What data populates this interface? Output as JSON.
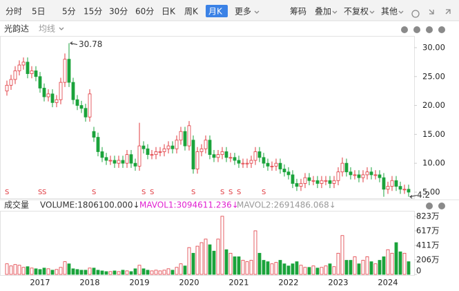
{
  "toolbar": {
    "left": [
      "分时",
      "5日",
      "5分",
      "15分",
      "30分",
      "60分",
      "日K",
      "周K",
      "月K",
      "更多"
    ],
    "active": 8,
    "right": [
      "筹码",
      "叠加",
      "不复权",
      "其他"
    ]
  },
  "header": {
    "name": "光韵达",
    "ma": "均线"
  },
  "chart_data": [
    {
      "type": "candlestick",
      "open": [
        22.5,
        23.5,
        24.5,
        26,
        27,
        27.5,
        25.5,
        26,
        25,
        23,
        21.5,
        22,
        20.5,
        21,
        24,
        28,
        24,
        21,
        20,
        19.5,
        18,
        15.5,
        14.5,
        12,
        11,
        10.5,
        10.5,
        10,
        10.5,
        10,
        11.5,
        10,
        9.5,
        13,
        12.5,
        11.5,
        11.5,
        12,
        12,
        12.5,
        13,
        12.5,
        14,
        15.5,
        13,
        14,
        9,
        12,
        12.5,
        14,
        11.5,
        11,
        11.5,
        12,
        11,
        11,
        10.5,
        10,
        10,
        10,
        10.5,
        12,
        11,
        10,
        9.5,
        9.5,
        10,
        9,
        8.5,
        8,
        6.5,
        6,
        6.5,
        7.5,
        7,
        7,
        6.5,
        7,
        7,
        6.5,
        7,
        8.5,
        10,
        8.5,
        8,
        8,
        7.5,
        8,
        8.5,
        8,
        8,
        7.5,
        5.5,
        6,
        7,
        6,
        5.5,
        5.5
      ],
      "high": [
        24.3,
        25.3,
        26.8,
        27.8,
        28.3,
        28.3,
        26.8,
        26.8,
        25.8,
        23.8,
        22.8,
        22.8,
        21.8,
        24.8,
        29,
        30.78,
        24.8,
        21.8,
        20.8,
        20.3,
        22.8,
        16.3,
        15.3,
        12.8,
        11.8,
        11.3,
        11.3,
        11.3,
        11.3,
        12.3,
        12.3,
        10.8,
        17,
        13.8,
        13.3,
        12.3,
        12.8,
        12.8,
        13.3,
        13.8,
        13.8,
        14.8,
        16.3,
        16.3,
        17.3,
        14.8,
        12.8,
        13.3,
        14.8,
        14.8,
        12.3,
        12.3,
        12.8,
        12.8,
        11.8,
        11.8,
        11.3,
        10.8,
        10.8,
        11.3,
        12.8,
        12.8,
        11.8,
        10.8,
        10.3,
        10.8,
        10.8,
        9.8,
        9.3,
        8.8,
        7.3,
        7.3,
        8.3,
        8.3,
        7.8,
        7.8,
        7.8,
        7.8,
        7.8,
        7.8,
        9.3,
        11,
        10.8,
        9.3,
        8.8,
        8.8,
        8.8,
        9.3,
        9.3,
        8.8,
        8.8,
        8.3,
        6.8,
        7.8,
        7.8,
        6.8,
        6.3,
        6.3
      ],
      "low": [
        21.7,
        22.7,
        23.7,
        25.2,
        26.2,
        24.7,
        24.7,
        24.2,
        22.2,
        20.7,
        20.7,
        19.7,
        19.7,
        20.2,
        23.2,
        23.2,
        20.2,
        19.2,
        18.7,
        17.2,
        17.2,
        13.7,
        11.2,
        10.2,
        9.7,
        9.7,
        9.2,
        9.2,
        9.2,
        9.2,
        9.2,
        8.7,
        8.7,
        11.7,
        10.7,
        10.7,
        10.7,
        11.2,
        11.2,
        11.7,
        11.7,
        11.7,
        13.2,
        12.2,
        12.2,
        8.2,
        8.2,
        11.2,
        11.7,
        10.7,
        10.2,
        10.2,
        10.7,
        10.2,
        10.2,
        9.7,
        9.2,
        9.2,
        9.2,
        9.2,
        9.7,
        10.2,
        9.2,
        8.7,
        8.7,
        8.7,
        8.2,
        7.7,
        7.2,
        5.7,
        5.2,
        5.2,
        5.7,
        6.2,
        6.2,
        5.7,
        5.7,
        6.2,
        5.7,
        5.7,
        6.2,
        7.7,
        7.7,
        7.2,
        7.2,
        6.7,
        6.7,
        7.2,
        7.2,
        7.2,
        6.7,
        4.21,
        4.7,
        5.2,
        5.2,
        4.7,
        4.7,
        4.2
      ],
      "close": [
        23.5,
        24.5,
        26,
        27,
        27.5,
        25.5,
        26,
        25,
        23,
        21.5,
        22,
        20.5,
        21,
        24,
        28,
        24,
        21,
        20,
        19.5,
        18,
        22,
        14.5,
        12,
        11,
        10.5,
        10.5,
        10,
        10.5,
        10,
        11.5,
        10,
        9.5,
        13,
        12.5,
        11.5,
        11.5,
        12,
        12,
        12.5,
        13,
        12.5,
        14,
        15.5,
        13,
        16.5,
        9,
        12,
        12.5,
        14,
        11.5,
        11,
        11.5,
        12,
        11,
        11,
        10.5,
        10,
        10,
        10,
        10.5,
        12,
        11,
        10,
        9.5,
        9.5,
        10,
        9,
        8.5,
        8,
        6.5,
        6,
        6.5,
        7.5,
        7,
        7,
        6.5,
        7,
        7,
        6.5,
        7,
        8.5,
        10,
        8.5,
        8,
        8,
        7.5,
        8,
        8.5,
        8,
        8,
        7.5,
        5.5,
        6,
        7,
        6,
        5.5,
        5.5,
        5
      ],
      "up_color": "#e0383e",
      "down_color": "#1aa33b",
      "ylim": [
        4.04,
        32.03
      ],
      "yticks": [
        {
          "value": 5,
          "label": "5.00"
        },
        {
          "value": 10,
          "label": "10.00"
        },
        {
          "value": 15,
          "label": "15.00"
        },
        {
          "value": 20,
          "label": "20.00"
        },
        {
          "value": 25,
          "label": "25.00"
        },
        {
          "value": 30,
          "label": "30.00"
        }
      ],
      "signal_label": "S",
      "signal_indices": [
        0,
        8,
        9,
        21,
        33,
        35,
        45,
        52,
        54,
        56,
        62
      ]
    },
    {
      "type": "bar",
      "title": "成交量",
      "legend": [
        {
          "text": "VOLUME:1806100.000↓",
          "color": "#333333"
        },
        {
          "text": "MAVOL1:3094611.236↓",
          "color": "#e020d0"
        },
        {
          "text": "MAVOL2:2691486.068↓",
          "color": "#999999"
        }
      ],
      "categories": [
        null,
        null,
        null,
        null,
        null,
        null,
        null,
        null,
        "2017",
        null,
        null,
        null,
        null,
        null,
        null,
        null,
        null,
        null,
        null,
        null,
        "2018",
        null,
        null,
        null,
        null,
        null,
        null,
        null,
        null,
        null,
        null,
        null,
        "2019",
        null,
        null,
        null,
        null,
        null,
        null,
        null,
        null,
        null,
        null,
        null,
        "2020",
        null,
        null,
        null,
        null,
        null,
        null,
        null,
        null,
        null,
        null,
        null,
        "2021",
        null,
        null,
        null,
        null,
        null,
        null,
        null,
        null,
        null,
        null,
        null,
        "2022",
        null,
        null,
        null,
        null,
        null,
        null,
        null,
        null,
        null,
        null,
        null,
        "2023",
        null,
        null,
        null,
        null,
        null,
        null,
        null,
        null,
        null,
        null,
        null,
        "2024",
        null,
        null,
        null,
        null,
        null
      ],
      "values": [
        150,
        120,
        140,
        130,
        100,
        110,
        90,
        80,
        70,
        90,
        80,
        60,
        70,
        100,
        180,
        150,
        80,
        70,
        60,
        60,
        90,
        90,
        60,
        50,
        40,
        40,
        50,
        40,
        60,
        50,
        40,
        80,
        130,
        80,
        60,
        50,
        60,
        50,
        60,
        80,
        60,
        100,
        150,
        120,
        380,
        300,
        400,
        450,
        500,
        420,
        330,
        500,
        823,
        350,
        300,
        250,
        250,
        200,
        180,
        200,
        617,
        300,
        200,
        180,
        150,
        170,
        200,
        150,
        120,
        150,
        180,
        130,
        100,
        100,
        120,
        90,
        100,
        120,
        150,
        110,
        300,
        550,
        200,
        200,
        250,
        150,
        200,
        250,
        180,
        150,
        200,
        250,
        350,
        300,
        450,
        320,
        300,
        180.61
      ],
      "ylim": [
        0,
        900
      ],
      "yticks": [
        {
          "value": 0,
          "label": "0"
        },
        {
          "value": 206,
          "label": "206万"
        },
        {
          "value": 411,
          "label": "411万"
        },
        {
          "value": 617,
          "label": "617万"
        },
        {
          "value": 823,
          "label": "823万"
        }
      ]
    }
  ]
}
